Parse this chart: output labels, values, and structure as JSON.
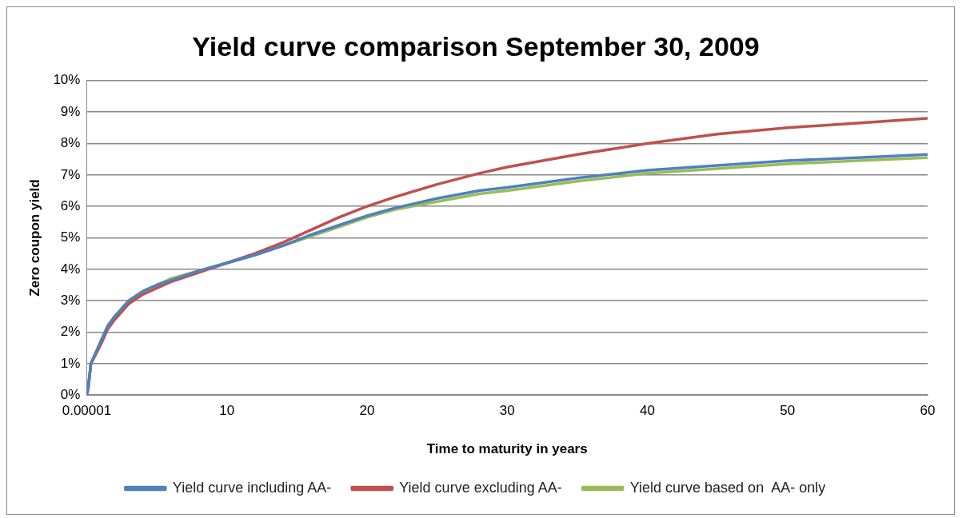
{
  "chart_data": {
    "type": "line",
    "title": "Yield curve comparison September 30, 2009",
    "xlabel": "Time to maturity in years",
    "ylabel": "Zero coupon yield",
    "x": [
      1e-05,
      0.1,
      0.3,
      0.6,
      1,
      1.5,
      2,
      3,
      4,
      5,
      6,
      8,
      10,
      12,
      14,
      16,
      18,
      20,
      22,
      25,
      28,
      30,
      35,
      40,
      45,
      50,
      55,
      60
    ],
    "series": [
      {
        "name": "Yield curve including AA-",
        "color": "#4f81bd",
        "values": [
          0,
          0.2,
          1.0,
          1.3,
          1.7,
          2.2,
          2.5,
          3.0,
          3.3,
          3.5,
          3.65,
          3.95,
          4.2,
          4.45,
          4.75,
          5.1,
          5.4,
          5.7,
          5.95,
          6.25,
          6.5,
          6.6,
          6.9,
          7.15,
          7.3,
          7.45,
          7.55,
          7.65
        ]
      },
      {
        "name": "Yield curve excluding AA-",
        "color": "#c0504d",
        "values": [
          0,
          0.2,
          1.0,
          1.25,
          1.6,
          2.1,
          2.4,
          2.9,
          3.2,
          3.4,
          3.6,
          3.9,
          4.2,
          4.5,
          4.85,
          5.25,
          5.65,
          6.0,
          6.3,
          6.7,
          7.05,
          7.25,
          7.65,
          8.0,
          8.3,
          8.5,
          8.65,
          8.8
        ]
      },
      {
        "name": "Yield curve based on  AA- only",
        "color": "#9bbb59",
        "values": [
          0,
          0.2,
          1.0,
          1.3,
          1.7,
          2.2,
          2.5,
          3.0,
          3.3,
          3.5,
          3.7,
          3.95,
          4.2,
          4.45,
          4.75,
          5.05,
          5.35,
          5.65,
          5.9,
          6.15,
          6.4,
          6.5,
          6.8,
          7.05,
          7.2,
          7.35,
          7.45,
          7.55
        ]
      }
    ],
    "xlim": [
      1e-05,
      60
    ],
    "xticks": [
      {
        "value": 1e-05,
        "label": "0.00001"
      },
      10,
      20,
      30,
      40,
      50,
      60
    ],
    "ylim": [
      0,
      10
    ],
    "yticks": [
      {
        "value": 0,
        "label": "0%"
      },
      {
        "value": 1,
        "label": "1%"
      },
      {
        "value": 2,
        "label": "2%"
      },
      {
        "value": 3,
        "label": "3%"
      },
      {
        "value": 4,
        "label": "4%"
      },
      {
        "value": 5,
        "label": "5%"
      },
      {
        "value": 6,
        "label": "6%"
      },
      {
        "value": 7,
        "label": "7%"
      },
      {
        "value": 8,
        "label": "8%"
      },
      {
        "value": 9,
        "label": "9%"
      },
      {
        "value": 10,
        "label": "10%"
      }
    ],
    "grid": "y",
    "legend": "bottom",
    "marker": "none",
    "line_style": "solid"
  }
}
